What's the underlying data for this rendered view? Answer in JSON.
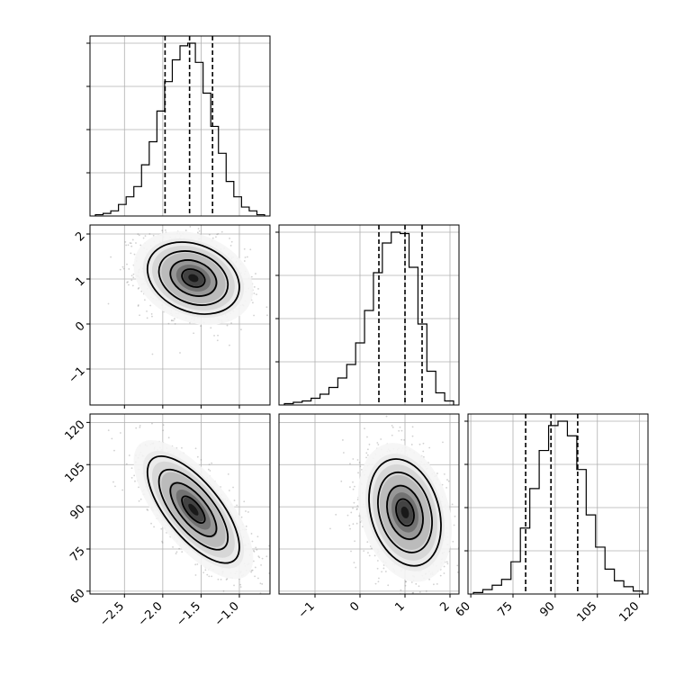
{
  "chart_data": {
    "type": "corner",
    "params": [
      {
        "id": "p0",
        "range": [
          -2.95,
          -0.6
        ],
        "ticks": [
          -2.5,
          -2.0,
          -1.5,
          -1.0
        ],
        "tick_labels": [
          "−2.5",
          "−2.0",
          "−1.5",
          "−1.0"
        ],
        "quantiles": [
          -1.97,
          -1.65,
          -1.35
        ],
        "hist_counts": [
          1,
          2,
          4,
          9,
          15,
          23,
          40,
          58,
          82,
          105,
          122,
          133,
          135,
          120,
          96,
          70,
          49,
          27,
          15,
          7,
          4,
          1
        ]
      },
      {
        "id": "p1",
        "range": [
          -1.8,
          2.2
        ],
        "ticks": [
          -1,
          0,
          1,
          2
        ],
        "tick_labels": [
          "−1",
          "0",
          "1",
          "2"
        ],
        "quantiles": [
          0.42,
          1.0,
          1.38
        ],
        "hist_counts": [
          1,
          2,
          3,
          5,
          8,
          13,
          20,
          30,
          46,
          70,
          98,
          120,
          128,
          127,
          102,
          60,
          25,
          9,
          3
        ]
      },
      {
        "id": "p2",
        "range": [
          59,
          123
        ],
        "ticks": [
          60,
          75,
          90,
          105,
          120
        ],
        "tick_labels": [
          "60",
          "75",
          "90",
          "105",
          "120"
        ],
        "quantiles": [
          79.5,
          88.5,
          98.0
        ],
        "hist_counts": [
          1,
          3,
          6,
          10,
          22,
          45,
          72,
          98,
          115,
          118,
          108,
          85,
          54,
          32,
          17,
          9,
          5,
          2
        ]
      }
    ],
    "pairs": [
      {
        "x": "p0",
        "y": "p1",
        "center": [
          -1.6,
          1.02
        ],
        "sd": [
          0.3,
          0.4
        ],
        "corr": -0.25
      },
      {
        "x": "p0",
        "y": "p2",
        "center": [
          -1.6,
          89
        ],
        "sd": [
          0.3,
          9.5
        ],
        "corr": -0.7
      },
      {
        "x": "p1",
        "y": "p2",
        "center": [
          1.0,
          88
        ],
        "sd": [
          0.4,
          9.5
        ],
        "corr": -0.25
      }
    ],
    "grid": true,
    "title": "",
    "xlabel": "",
    "ylabel": ""
  }
}
